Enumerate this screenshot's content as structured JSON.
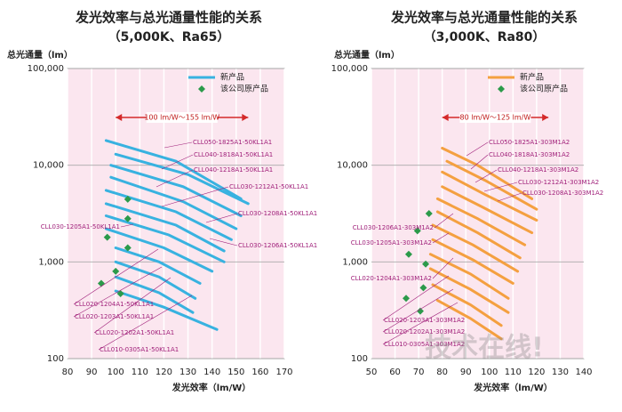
{
  "chart_data": [
    {
      "type": "line",
      "title": "发光效率与总光通量性能的关系",
      "subtitle": "（5,000K、Ra65）",
      "y_label": "总光通量（lm）",
      "x_label": "发光效率（lm/W）",
      "xlim": [
        80,
        170
      ],
      "xticks": [
        80,
        90,
        100,
        110,
        120,
        130,
        140,
        150,
        160,
        170
      ],
      "ylim": [
        100,
        100000
      ],
      "log_y": true,
      "yticks": [
        100,
        {
          "value": 1000,
          "label": "1,000"
        },
        {
          "value": 10000,
          "label": "10,000"
        },
        {
          "value": 100000,
          "label": "100,000"
        }
      ],
      "grid": true,
      "legend": "upper right",
      "range": [
        100,
        155
      ],
      "range_label": "100 lm/W～155 lm/W",
      "series": [
        {
          "name": "新产品",
          "color": "#38b2e0",
          "curves": [
            {
              "x": [
                96,
                125,
                152
              ],
              "values": [
                18000,
                11000,
                4500
              ]
            },
            {
              "x": [
                100,
                130,
                155
              ],
              "values": [
                13000,
                8000,
                4000
              ]
            },
            {
              "x": [
                98,
                128,
                152
              ],
              "values": [
                10000,
                6000,
                3000
              ]
            },
            {
              "x": [
                98,
                128,
                150
              ],
              "values": [
                7500,
                4200,
                2200
              ]
            },
            {
              "x": [
                96,
                125,
                148
              ],
              "values": [
                5500,
                3300,
                1700
              ]
            },
            {
              "x": [
                96,
                125,
                145
              ],
              "values": [
                4000,
                2400,
                1300
              ]
            },
            {
              "x": [
                96,
                122,
                145
              ],
              "values": [
                3000,
                1900,
                1000
              ]
            },
            {
              "x": [
                96,
                120,
                140
              ],
              "values": [
                2200,
                1400,
                800
              ]
            },
            {
              "x": [
                100,
                118,
                135
              ],
              "values": [
                1400,
                1000,
                600
              ]
            },
            {
              "x": [
                100,
                118,
                133
              ],
              "values": [
                1000,
                700,
                420
              ]
            },
            {
              "x": [
                100,
                118,
                132
              ],
              "values": [
                700,
                480,
                300
              ]
            },
            {
              "x": [
                100,
                120,
                142
              ],
              "values": [
                500,
                340,
                200
              ]
            }
          ]
        },
        {
          "name": "该公司原产品",
          "color": "#2b9a4a",
          "marker": "diamond",
          "x": [
            105,
            105,
            96.5,
            105,
            100,
            94,
            102
          ],
          "values": [
            4450,
            2800,
            1800,
            1400,
            800,
            600,
            470
          ]
        }
      ],
      "annotations": [
        "CLL050-1825A1-50KL1A1",
        "CLL040-1818A1-50KL1A1",
        "CLL040-1218A1-50KL1A1",
        "CLL030-1212A1-50KL1A1",
        "CLL030-1208A1-50KL1A1",
        "CLL030-1206A1-50KL1A1",
        "CLL030-1205A1-50KL1A1",
        "CLL020-1204A1-50KL1A1",
        "CLL020-1203A1-50KL1A1",
        "CLL020-1202A1-50KL1A1",
        "CLL010-0305A1-50KL1A1"
      ]
    },
    {
      "type": "line",
      "title": "发光效率与总光通量性能的关系",
      "subtitle": "（3,000K、Ra80）",
      "y_label": "总光通量（lm）",
      "x_label": "发光效率（lm/W）",
      "xlim": [
        50,
        140
      ],
      "xticks": [
        50,
        60,
        70,
        80,
        90,
        100,
        110,
        120,
        130,
        140
      ],
      "ylim": [
        100,
        100000
      ],
      "log_y": true,
      "yticks": [
        100,
        {
          "value": 1000,
          "label": "1,000"
        },
        {
          "value": 10000,
          "label": "10,000"
        },
        {
          "value": 100000,
          "label": "100,000"
        }
      ],
      "grid": true,
      "legend": "upper right",
      "range": [
        80,
        125
      ],
      "range_label": "80 lm/W～125 lm/W",
      "series": [
        {
          "name": "新产品",
          "color": "#f4a040",
          "curves": [
            {
              "x": [
                80,
                95,
                118
              ],
              "values": [
                15000,
                10000,
                4500
              ]
            },
            {
              "x": [
                82,
                98,
                120
              ],
              "values": [
                11000,
                7000,
                3500
              ]
            },
            {
              "x": [
                80,
                98,
                120
              ],
              "values": [
                8500,
                5000,
                2700
              ]
            },
            {
              "x": [
                80,
                97,
                118
              ],
              "values": [
                6000,
                3700,
                2000
              ]
            },
            {
              "x": [
                78,
                95,
                115
              ],
              "values": [
                4500,
                2800,
                1500
              ]
            },
            {
              "x": [
                78,
                95,
                113
              ],
              "values": [
                3300,
                2000,
                1100
              ]
            },
            {
              "x": [
                76,
                93,
                112
              ],
              "values": [
                2400,
                1500,
                800
              ]
            },
            {
              "x": [
                76,
                93,
                110
              ],
              "values": [
                1700,
                1050,
                600
              ]
            },
            {
              "x": [
                75,
                92,
                108
              ],
              "values": [
                1200,
                750,
                420
              ]
            },
            {
              "x": [
                75,
                92,
                108
              ],
              "values": [
                850,
                520,
                300
              ]
            },
            {
              "x": [
                76,
                92,
                105
              ],
              "values": [
                580,
                360,
                220
              ]
            },
            {
              "x": [
                78,
                92,
                105
              ],
              "values": [
                400,
                260,
                160
              ]
            }
          ]
        },
        {
          "name": "该公司原产品",
          "color": "#2b9a4a",
          "marker": "diamond",
          "x": [
            74.4,
            69.5,
            65.8,
            73,
            72,
            64.7,
            70.7
          ],
          "values": [
            3160,
            2100,
            1200,
            950,
            540,
            420,
            310
          ]
        }
      ],
      "annotations": [
        "CLL050-1825A1-303M1A2",
        "CLL040-1818A1-303M1A2",
        "CLL040-1218A1-303M1A2",
        "CLL030-1212A1-303M1A2",
        "CLL030-1208A1-303M1A2",
        "CLL030-1206A1-303M1A2",
        "CLL030-1205A1-303M1A2",
        "CLL020-1204A1-303M1A2",
        "CLL020-1203A1-303M1A2",
        "CLL020-1202A1-303M1A2",
        "CLL010-0305A1-303M1A2"
      ]
    }
  ],
  "watermark": "技术在线!"
}
